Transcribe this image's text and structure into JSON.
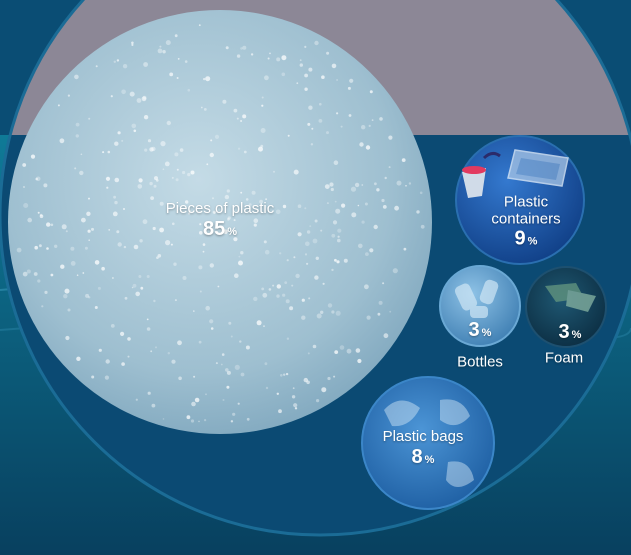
{
  "chart_data": {
    "type": "bubble",
    "unit": "%",
    "items": [
      {
        "name": "Pieces of plastic",
        "value": 85
      },
      {
        "name": "Plastic containers",
        "value": 9
      },
      {
        "name": "Plastic bags",
        "value": 8
      },
      {
        "name": "Bottles",
        "value": 3
      },
      {
        "name": "Foam",
        "value": 3
      }
    ]
  },
  "labels": {
    "pieces": {
      "name": "Pieces of plastic",
      "value": "85",
      "unit": "%"
    },
    "containers": {
      "line1": "Plastic",
      "line2": "containers",
      "value": "9",
      "unit": "%"
    },
    "bags": {
      "name": "Plastic bags",
      "value": "8",
      "unit": "%"
    },
    "bottles": {
      "name": "Bottles",
      "value": "3",
      "unit": "%"
    },
    "foam": {
      "name": "Foam",
      "value": "3",
      "unit": "%"
    }
  },
  "colors": {
    "sky": "#8c8796",
    "water": "#0d6689",
    "water_deep": "#083f62",
    "outer_circle": "#0b4a73",
    "pieces_circle": "#a9c9da",
    "containers_circle": "#1d5fb3",
    "bags_circle": "#2c78c4",
    "bottles_circle": "#5f9fcf",
    "foam_circle": "#123d55"
  }
}
